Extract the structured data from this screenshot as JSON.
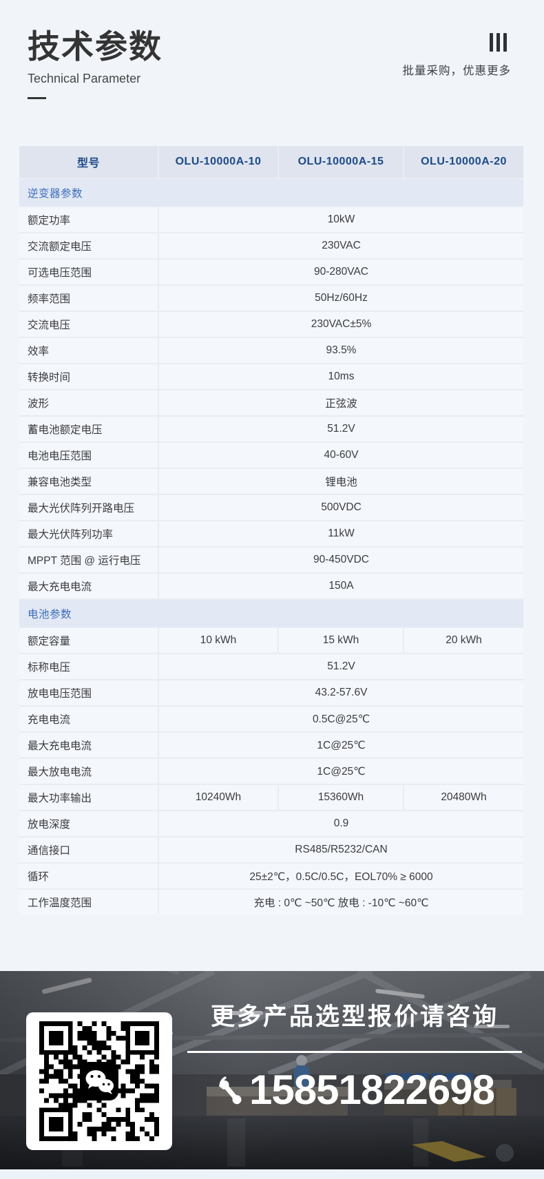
{
  "header": {
    "title": "技术参数",
    "subtitle": "Technical Parameter",
    "menu_icon": "three-vertical-bars",
    "promo": "批量采购，优惠更多"
  },
  "table": {
    "columns": [
      "型号",
      "OLU-10000A-10",
      "OLU-10000A-15",
      "OLU-10000A-20"
    ],
    "sections": [
      {
        "title": "逆变器参数",
        "rows": [
          {
            "label": "额定功率",
            "value": "10kW"
          },
          {
            "label": "交流额定电压",
            "value": "230VAC"
          },
          {
            "label": "可选电压范围",
            "value": "90-280VAC"
          },
          {
            "label": "频率范围",
            "value": "50Hz/60Hz"
          },
          {
            "label": "交流电压",
            "value": "230VAC±5%"
          },
          {
            "label": "效率",
            "value": "93.5%"
          },
          {
            "label": "转换时间",
            "value": "10ms"
          },
          {
            "label": "波形",
            "value": "正弦波"
          },
          {
            "label": "蓄电池额定电压",
            "value": "51.2V"
          },
          {
            "label": "电池电压范围",
            "value": "40-60V"
          },
          {
            "label": "兼容电池类型",
            "value": "锂电池"
          },
          {
            "label": "最大光伏阵列开路电压",
            "value": "500VDC"
          },
          {
            "label": "最大光伏阵列功率",
            "value": "11kW"
          },
          {
            "label": "MPPT 范围 @ 运行电压",
            "value": "90-450VDC"
          },
          {
            "label": "最大充电电流",
            "value": "150A"
          }
        ]
      },
      {
        "title": "电池参数",
        "rows": [
          {
            "label": "额定容量",
            "values": [
              "10 kWh",
              "15 kWh",
              "20 kWh"
            ]
          },
          {
            "label": "标称电压",
            "value": "51.2V"
          },
          {
            "label": "放电电压范围",
            "value": "43.2-57.6V"
          },
          {
            "label": "充电电流",
            "value": "0.5C@25℃"
          },
          {
            "label": "最大充电电流",
            "value": "1C@25℃"
          },
          {
            "label": "最大放电电流",
            "value": "1C@25℃"
          },
          {
            "label": "最大功率输出",
            "values": [
              "10240Wh",
              "15360Wh",
              "20480Wh"
            ]
          },
          {
            "label": "放电深度",
            "value": "0.9"
          },
          {
            "label": "通信接口",
            "value": "RS485/R5232/CAN"
          },
          {
            "label": "循环",
            "value": "25±2℃，0.5C/0.5C，EOL70% ≥ 6000"
          },
          {
            "label": "工作温度范围",
            "value": "充电 : 0℃ ~50℃ 放电 : -10℃ ~60℃"
          }
        ]
      }
    ]
  },
  "footer": {
    "qr_icon": "wechat-qr-code",
    "wechat_icon": "wechat-logo",
    "headline": "更多产品选型报价请咨询",
    "phone_icon": "phone-receiver",
    "phone": "15851822698"
  },
  "colors": {
    "page_bg": "#f1f5fa",
    "cell_bg": "#f4f7fc",
    "sep": "#e9edf3",
    "head_bg": "#dfe4ef",
    "head_text": "#1c4a87",
    "section_bg": "#e2e8f4",
    "section_text": "#3c6cba",
    "text": "#3b3b3d",
    "title": "#343434",
    "photo_strip": "#edf2f9"
  }
}
